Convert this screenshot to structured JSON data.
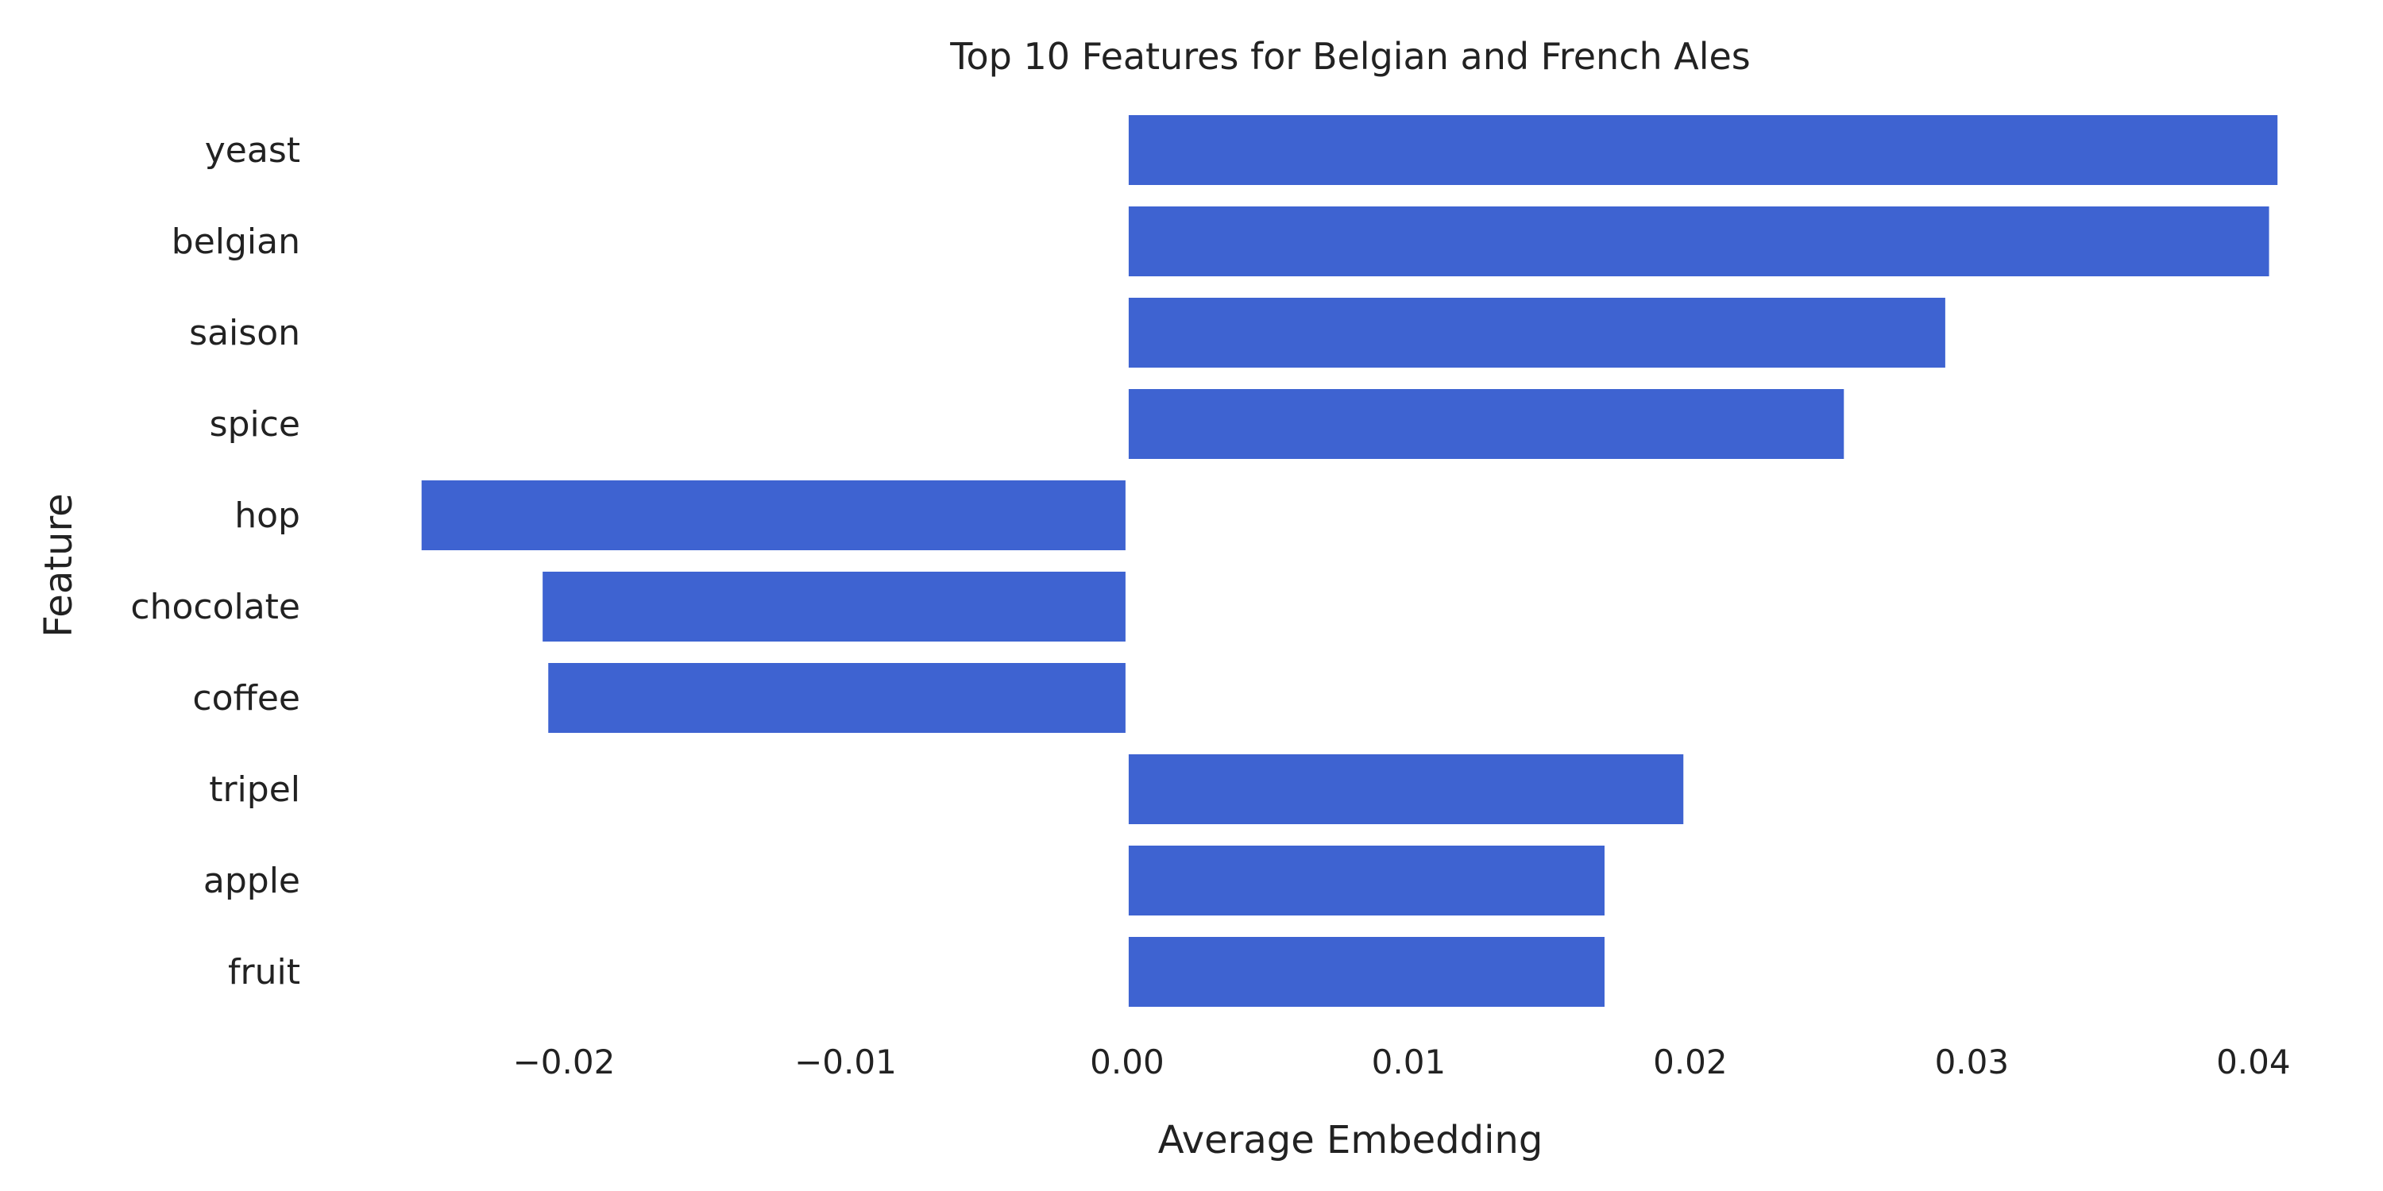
{
  "chart_data": {
    "type": "bar",
    "orientation": "horizontal",
    "title": "Top 10 Features for Belgian and French Ales",
    "xlabel": "Average Embedding",
    "ylabel": "Feature",
    "categories": [
      "yeast",
      "belgian",
      "saison",
      "spice",
      "hop",
      "chocolate",
      "coffee",
      "tripel",
      "apple",
      "fruit"
    ],
    "values": [
      0.0408,
      0.0405,
      0.029,
      0.0254,
      -0.025,
      -0.0207,
      -0.0205,
      0.0197,
      0.0169,
      0.0169
    ],
    "xlim": [
      -0.0255,
      0.0415
    ],
    "xticks": [
      -0.02,
      -0.01,
      0.0,
      0.01,
      0.02,
      0.03,
      0.04
    ],
    "xtick_labels": [
      "−0.02",
      "−0.01",
      "0.00",
      "0.01",
      "0.02",
      "0.03",
      "0.04"
    ],
    "grid": false,
    "bar_color": "#3e63d1"
  }
}
